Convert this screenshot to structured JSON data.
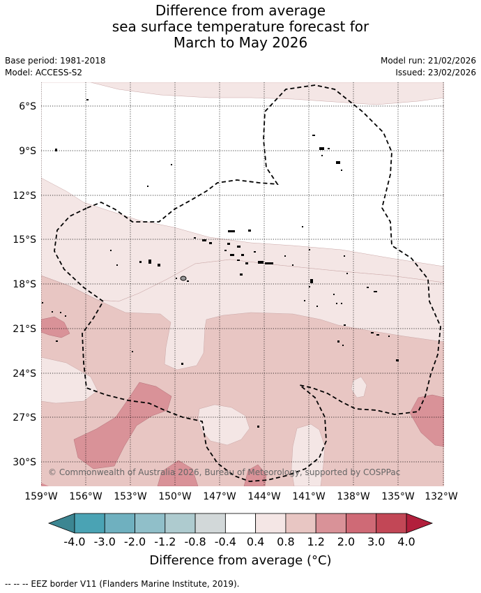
{
  "title": {
    "line1": "Difference from average",
    "line2": "sea surface temperature forecast for",
    "line3": "March to May 2026"
  },
  "header_left": {
    "base_period": "Base period: 1981-2018",
    "model": "Model: ACCESS-S2"
  },
  "header_right": {
    "model_run": "Model run: 21/02/2026",
    "issued": "Issued: 23/02/2026"
  },
  "map": {
    "lat_labels": [
      "6°S",
      "9°S",
      "12°S",
      "15°S",
      "18°S",
      "21°S",
      "24°S",
      "27°S",
      "30°S"
    ],
    "lon_labels": [
      "159°W",
      "156°W",
      "153°W",
      "150°W",
      "147°W",
      "144°W",
      "141°W",
      "138°W",
      "135°W",
      "132°W"
    ],
    "copyright": "© Commonwealth of Australia 2026, Bureau of Meteorology, supported by COSPPac"
  },
  "colorbar": {
    "ticks": [
      "-4.0",
      "-3.0",
      "-2.0",
      "-1.2",
      "-0.8",
      "-0.4",
      "0.4",
      "0.8",
      "1.2",
      "2.0",
      "3.0",
      "4.0"
    ],
    "colors": [
      "#4aa3b4",
      "#6fb0bf",
      "#90bfc9",
      "#aecbcf",
      "#d2d8d9",
      "#ffffff",
      "#f4e6e5",
      "#e8c6c3",
      "#d99298",
      "#cf6a76",
      "#c24756"
    ],
    "low_color": "#3c8692",
    "high_color": "#b21f3c",
    "label": "Difference from average (°C)"
  },
  "legend": {
    "eez_text": "--  --  -- EEZ border V11 (Flanders Marine Institute, 2019)."
  }
}
